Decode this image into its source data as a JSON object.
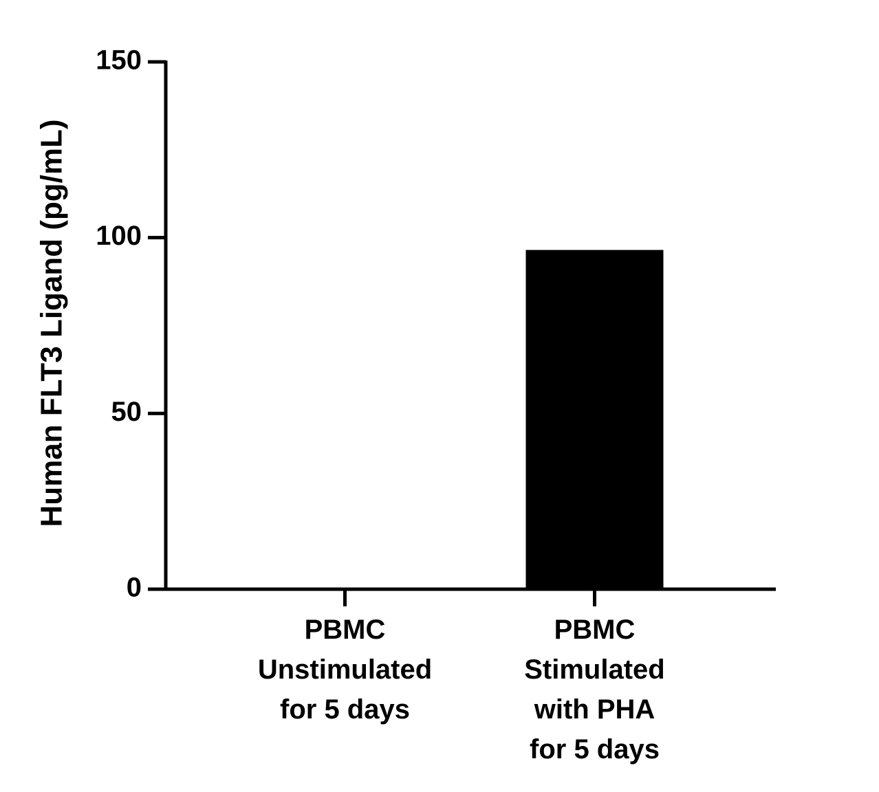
{
  "chart_data": {
    "type": "bar",
    "y_label": "Human FLT3 Ligand (pg/mL)",
    "categories": [
      "PBMC\nUnstimulated\nfor 5 days",
      "PBMC\nStimulated\nwith PHA\nfor 5 days"
    ],
    "values": [
      0,
      96.5
    ],
    "color": "#000000",
    "ylim": [
      0,
      150
    ],
    "yticks": [
      0,
      50,
      100,
      150
    ]
  }
}
